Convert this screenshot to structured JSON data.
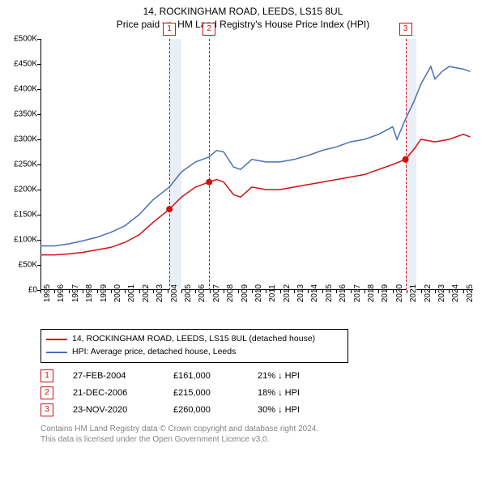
{
  "title_line1": "14, ROCKINGHAM ROAD, LEEDS, LS15 8UL",
  "title_line2": "Price paid vs. HM Land Registry's House Price Index (HPI)",
  "chart": {
    "type": "line",
    "background_color": "#ffffff",
    "plot_color": "#ffffff",
    "x_years": [
      1995,
      1996,
      1997,
      1998,
      1999,
      2000,
      2001,
      2002,
      2003,
      2004,
      2005,
      2006,
      2007,
      2008,
      2009,
      2010,
      2011,
      2012,
      2013,
      2014,
      2015,
      2016,
      2017,
      2018,
      2019,
      2020,
      2021,
      2022,
      2023,
      2024,
      2025
    ],
    "xlim": [
      1995,
      2025.7
    ],
    "ylim": [
      0,
      500000
    ],
    "ytick_step": 50000,
    "ytick_labels": [
      "£0",
      "£50K",
      "£100K",
      "£150K",
      "£200K",
      "£250K",
      "£300K",
      "£350K",
      "£400K",
      "£450K",
      "£500K"
    ],
    "tick_label_fontsize": 10,
    "series": [
      {
        "name": "price_paid",
        "color": "#d11010",
        "width": 1.5,
        "points": [
          [
            1995.0,
            70000
          ],
          [
            1996.0,
            70000
          ],
          [
            1997.0,
            72000
          ],
          [
            1998.0,
            75000
          ],
          [
            1999.0,
            80000
          ],
          [
            2000.0,
            85000
          ],
          [
            2001.0,
            95000
          ],
          [
            2002.0,
            110000
          ],
          [
            2003.0,
            135000
          ],
          [
            2004.15,
            161000
          ],
          [
            2005.0,
            185000
          ],
          [
            2006.0,
            205000
          ],
          [
            2006.97,
            215000
          ],
          [
            2007.5,
            220000
          ],
          [
            2008.0,
            215000
          ],
          [
            2008.7,
            190000
          ],
          [
            2009.2,
            185000
          ],
          [
            2010.0,
            205000
          ],
          [
            2011.0,
            200000
          ],
          [
            2012.0,
            200000
          ],
          [
            2013.0,
            205000
          ],
          [
            2014.0,
            210000
          ],
          [
            2015.0,
            215000
          ],
          [
            2016.0,
            220000
          ],
          [
            2017.0,
            225000
          ],
          [
            2018.0,
            230000
          ],
          [
            2019.0,
            240000
          ],
          [
            2020.0,
            250000
          ],
          [
            2020.9,
            260000
          ],
          [
            2021.5,
            280000
          ],
          [
            2022.0,
            300000
          ],
          [
            2023.0,
            295000
          ],
          [
            2024.0,
            300000
          ],
          [
            2025.0,
            310000
          ],
          [
            2025.5,
            305000
          ]
        ]
      },
      {
        "name": "hpi",
        "color": "#4a6fb5",
        "width": 1.5,
        "points": [
          [
            1995.0,
            88000
          ],
          [
            1996.0,
            88000
          ],
          [
            1997.0,
            92000
          ],
          [
            1998.0,
            98000
          ],
          [
            1999.0,
            105000
          ],
          [
            2000.0,
            115000
          ],
          [
            2001.0,
            128000
          ],
          [
            2002.0,
            150000
          ],
          [
            2003.0,
            180000
          ],
          [
            2004.15,
            205000
          ],
          [
            2005.0,
            235000
          ],
          [
            2006.0,
            255000
          ],
          [
            2006.97,
            265000
          ],
          [
            2007.5,
            278000
          ],
          [
            2008.0,
            275000
          ],
          [
            2008.7,
            245000
          ],
          [
            2009.2,
            240000
          ],
          [
            2010.0,
            260000
          ],
          [
            2011.0,
            255000
          ],
          [
            2012.0,
            255000
          ],
          [
            2013.0,
            260000
          ],
          [
            2014.0,
            268000
          ],
          [
            2015.0,
            278000
          ],
          [
            2016.0,
            285000
          ],
          [
            2017.0,
            295000
          ],
          [
            2018.0,
            300000
          ],
          [
            2019.0,
            310000
          ],
          [
            2020.0,
            325000
          ],
          [
            2020.3,
            300000
          ],
          [
            2020.9,
            340000
          ],
          [
            2021.5,
            375000
          ],
          [
            2022.0,
            410000
          ],
          [
            2022.7,
            445000
          ],
          [
            2023.0,
            420000
          ],
          [
            2023.5,
            435000
          ],
          [
            2024.0,
            445000
          ],
          [
            2025.0,
            440000
          ],
          [
            2025.5,
            435000
          ]
        ]
      }
    ],
    "sale_markers": [
      {
        "x": 2004.15,
        "y": 161000,
        "color": "#d11010"
      },
      {
        "x": 2006.97,
        "y": 215000,
        "color": "#d11010"
      },
      {
        "x": 2020.9,
        "y": 260000,
        "color": "#d11010"
      }
    ],
    "event_lines": [
      {
        "num": "1",
        "x": 2004.15,
        "color": "#d11010",
        "band_to": 2005.0,
        "band_color": "#eaeef7"
      },
      {
        "num": "2",
        "x": 2006.97,
        "color": "#d11010",
        "band_to": null,
        "band_color": null
      },
      {
        "num": "3",
        "x": 2020.9,
        "color": "#d11010",
        "band_to": 2021.7,
        "band_color": "#eaeef7"
      }
    ]
  },
  "legend": {
    "items": [
      {
        "color": "#d11010",
        "label": "14, ROCKINGHAM ROAD, LEEDS, LS15 8UL (detached house)"
      },
      {
        "color": "#4a6fb5",
        "label": "HPI: Average price, detached house, Leeds"
      }
    ]
  },
  "transactions": [
    {
      "num": "1",
      "date": "27-FEB-2004",
      "price": "£161,000",
      "delta": "21% ↓ HPI",
      "color": "#d11010"
    },
    {
      "num": "2",
      "date": "21-DEC-2006",
      "price": "£215,000",
      "delta": "18% ↓ HPI",
      "color": "#d11010"
    },
    {
      "num": "3",
      "date": "23-NOV-2020",
      "price": "£260,000",
      "delta": "30% ↓ HPI",
      "color": "#d11010"
    }
  ],
  "footer_line1": "Contains HM Land Registry data © Crown copyright and database right 2024.",
  "footer_line2": "This data is licensed under the Open Government Licence v3.0."
}
